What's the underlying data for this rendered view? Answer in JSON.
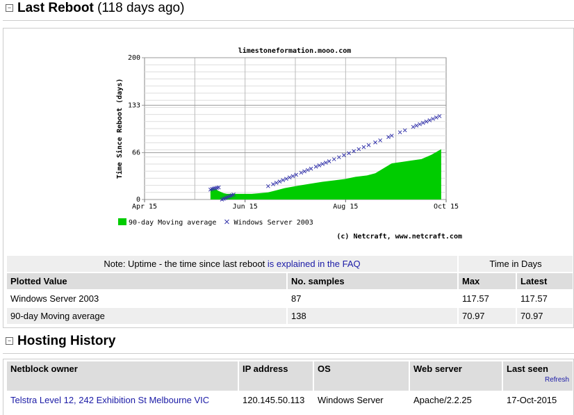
{
  "reboot": {
    "title": "Last Reboot",
    "subtitle": "(118 days ago)"
  },
  "chart_data": {
    "type": "scatter",
    "title": "limestoneformation.mooo.com",
    "ylabel": "Time Since Reboot (days)",
    "xlim": [
      0,
      183
    ],
    "xticks": [
      {
        "value": 0,
        "label": "Apr 15"
      },
      {
        "value": 61,
        "label": "Jun 15"
      },
      {
        "value": 122,
        "label": "Aug 15"
      },
      {
        "value": 183,
        "label": "Oct 15"
      }
    ],
    "ylim": [
      0,
      200
    ],
    "yticks": [
      0,
      66,
      133,
      200
    ],
    "grid": true,
    "series": [
      {
        "name": "90-day Moving average",
        "type": "area",
        "color": "#00cc00",
        "x": [
          40,
          42,
          45,
          48,
          50,
          55,
          60,
          65,
          70,
          75,
          80,
          85,
          92,
          100,
          108,
          115,
          122,
          128,
          135,
          140,
          145,
          150,
          156,
          162,
          168,
          174,
          180
        ],
        "values": [
          15,
          16,
          12,
          9,
          8,
          8,
          8,
          8,
          9,
          10,
          13,
          16,
          19,
          22,
          25,
          27,
          29,
          32,
          34,
          37,
          44,
          51,
          53,
          55,
          57,
          63,
          70.97
        ]
      },
      {
        "name": "Windows Server 2003",
        "type": "scatter",
        "color": "#3333aa",
        "x": [
          40,
          41,
          42,
          43,
          44,
          45,
          47,
          48,
          49,
          50,
          51,
          52,
          53,
          54,
          75,
          78,
          80,
          82,
          84,
          86,
          88,
          90,
          92,
          95,
          97,
          99,
          101,
          104,
          106,
          108,
          110,
          112,
          115,
          118,
          121,
          124,
          127,
          130,
          133,
          136,
          140,
          143,
          148,
          150,
          155,
          158,
          163,
          165,
          167,
          169,
          171,
          173,
          175,
          177,
          179
        ],
        "values": [
          14,
          15,
          15.5,
          16,
          16.5,
          17,
          0,
          1,
          2,
          3,
          4,
          5,
          6,
          7,
          18.8,
          21.6,
          23.5,
          25.4,
          27.3,
          29.2,
          31.1,
          33,
          34.9,
          37.8,
          39.7,
          41.6,
          43.5,
          46.3,
          48.2,
          50.1,
          52,
          53.9,
          56.8,
          59.6,
          62.5,
          65.3,
          68.2,
          71,
          73.9,
          76.7,
          80.5,
          83.4,
          88.1,
          90,
          94.8,
          97.6,
          102.4,
          104.3,
          106.2,
          108.1,
          109.9,
          111.8,
          113.8,
          115.7,
          117.57
        ]
      }
    ],
    "copyright": "(c) Netcraft, www.netcraft.com"
  },
  "uptime_table": {
    "note": "Note: Uptime - the time since last reboot",
    "note_link": "is explained in the FAQ",
    "group_header": "Time in Days",
    "columns": [
      "Plotted Value",
      "No. samples",
      "Max",
      "Latest"
    ],
    "rows": [
      [
        "Windows Server 2003",
        87,
        117.57,
        117.57
      ],
      [
        "90-day Moving average",
        138,
        70.97,
        70.97
      ]
    ]
  },
  "hosting": {
    "title": "Hosting History",
    "columns": [
      "Netblock owner",
      "IP address",
      "OS",
      "Web server",
      "Last seen"
    ],
    "refresh": "Refresh",
    "rows": [
      [
        "Telstra Level 12, 242 Exhibition St Melbourne VIC",
        "120.145.50.113",
        "Windows Server",
        "Apache/2.2.25",
        "17-Oct-2015"
      ]
    ]
  }
}
